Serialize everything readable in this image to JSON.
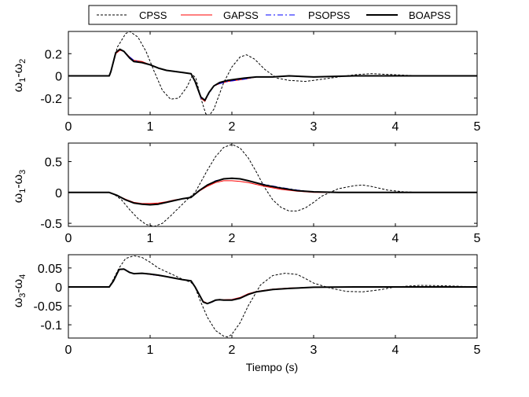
{
  "legend": {
    "entries": [
      {
        "label": "CPSS",
        "color": "#000000",
        "dash": "3,2",
        "width": 1
      },
      {
        "label": "GAPSS",
        "color": "#ff0000",
        "dash": "",
        "width": 1
      },
      {
        "label": "PSOPSS",
        "color": "#0000ff",
        "dash": "7,3,2,3",
        "width": 1
      },
      {
        "label": "BOAPSS",
        "color": "#000000",
        "dash": "",
        "width": 2
      }
    ]
  },
  "chart_data": [
    {
      "type": "line",
      "ylabel_base": "ω",
      "ylabel_sub1": "1",
      "ylabel_sep": "-ω",
      "ylabel_sub2": "2",
      "xlim": [
        0,
        5
      ],
      "ylim": [
        -0.35,
        0.4
      ],
      "xticks": [
        0,
        1,
        2,
        3,
        4,
        5
      ],
      "yticks": [
        -0.2,
        0,
        0.2
      ],
      "ytick_labels": [
        "-0.2",
        "0",
        "0.2"
      ],
      "series": [
        {
          "name": "CPSS",
          "x": [
            0,
            0.5,
            0.52,
            0.6,
            0.7,
            0.75,
            0.85,
            0.95,
            1.05,
            1.15,
            1.25,
            1.35,
            1.45,
            1.52,
            1.56,
            1.62,
            1.68,
            1.72,
            1.78,
            1.9,
            2.0,
            2.1,
            2.18,
            2.28,
            2.4,
            2.55,
            2.7,
            2.9,
            3.2,
            3.5,
            3.7,
            4.0,
            4.3,
            4.6,
            5.0
          ],
          "y": [
            0,
            0,
            0.04,
            0.26,
            0.38,
            0.4,
            0.35,
            0.22,
            0.04,
            -0.13,
            -0.21,
            -0.2,
            -0.1,
            0.01,
            -0.02,
            -0.2,
            -0.34,
            -0.36,
            -0.3,
            -0.06,
            0.08,
            0.17,
            0.19,
            0.15,
            0.06,
            -0.02,
            -0.04,
            -0.05,
            -0.02,
            0.01,
            0.02,
            0.01,
            0,
            0,
            0
          ]
        },
        {
          "name": "GAPSS",
          "x": [
            0,
            0.5,
            0.52,
            0.58,
            0.63,
            0.68,
            0.75,
            0.8,
            0.9,
            1.0,
            1.1,
            1.2,
            1.3,
            1.4,
            1.5,
            1.55,
            1.62,
            1.67,
            1.72,
            1.78,
            1.85,
            1.95,
            2.05,
            2.15,
            2.3,
            2.5,
            2.7,
            3.0,
            3.5,
            4.0,
            4.5,
            5.0
          ],
          "y": [
            0,
            0,
            0.04,
            0.2,
            0.23,
            0.22,
            0.17,
            0.14,
            0.13,
            0.1,
            0.07,
            0.05,
            0.04,
            0.03,
            0.02,
            -0.05,
            -0.2,
            -0.23,
            -0.15,
            -0.09,
            -0.07,
            -0.05,
            -0.04,
            -0.03,
            -0.01,
            -0.01,
            0,
            -0.01,
            0,
            0,
            0,
            0
          ]
        },
        {
          "name": "PSOPSS",
          "x": [
            0,
            0.5,
            0.52,
            0.58,
            0.63,
            0.68,
            0.75,
            0.8,
            0.9,
            1.0,
            1.1,
            1.2,
            1.3,
            1.4,
            1.5,
            1.55,
            1.62,
            1.67,
            1.72,
            1.78,
            1.85,
            1.95,
            2.05,
            2.15,
            2.3,
            2.5,
            2.7,
            3.0,
            3.5,
            4.0,
            4.5,
            5.0
          ],
          "y": [
            0,
            0,
            0.04,
            0.21,
            0.24,
            0.22,
            0.17,
            0.14,
            0.12,
            0.1,
            0.07,
            0.05,
            0.04,
            0.03,
            0.02,
            -0.05,
            -0.2,
            -0.22,
            -0.16,
            -0.09,
            -0.07,
            -0.05,
            -0.04,
            -0.03,
            -0.01,
            -0.01,
            0,
            -0.01,
            0,
            0,
            0,
            0
          ]
        },
        {
          "name": "BOAPSS",
          "x": [
            0,
            0.5,
            0.52,
            0.58,
            0.63,
            0.68,
            0.75,
            0.8,
            0.9,
            1.0,
            1.1,
            1.2,
            1.3,
            1.4,
            1.5,
            1.55,
            1.62,
            1.67,
            1.72,
            1.78,
            1.85,
            1.95,
            2.05,
            2.15,
            2.3,
            2.5,
            2.7,
            3.0,
            3.5,
            4.0,
            4.5,
            5.0
          ],
          "y": [
            0,
            0,
            0.04,
            0.21,
            0.24,
            0.22,
            0.16,
            0.13,
            0.12,
            0.1,
            0.07,
            0.05,
            0.04,
            0.03,
            0.02,
            -0.05,
            -0.19,
            -0.22,
            -0.15,
            -0.09,
            -0.06,
            -0.04,
            -0.03,
            -0.02,
            -0.01,
            -0.01,
            0,
            -0.01,
            0,
            0,
            0,
            0
          ]
        }
      ]
    },
    {
      "type": "line",
      "ylabel_base": "ω",
      "ylabel_sub1": "1",
      "ylabel_sep": "-ω",
      "ylabel_sub2": "3",
      "xlim": [
        0,
        5
      ],
      "ylim": [
        -0.55,
        0.8
      ],
      "xticks": [
        0,
        1,
        2,
        3,
        4,
        5
      ],
      "yticks": [
        -0.5,
        0,
        0.5
      ],
      "ytick_labels": [
        "-0.5",
        "0",
        "0.5"
      ],
      "series": [
        {
          "name": "CPSS",
          "x": [
            0,
            0.5,
            0.55,
            0.65,
            0.75,
            0.85,
            0.95,
            1.05,
            1.15,
            1.25,
            1.35,
            1.45,
            1.5,
            1.55,
            1.6,
            1.7,
            1.8,
            1.9,
            2.0,
            2.1,
            2.2,
            2.3,
            2.4,
            2.5,
            2.6,
            2.7,
            2.8,
            2.9,
            3.0,
            3.1,
            3.3,
            3.5,
            3.6,
            3.7,
            3.9,
            4.1,
            4.3,
            4.6,
            5.0
          ],
          "y": [
            0,
            0,
            -0.02,
            -0.12,
            -0.28,
            -0.42,
            -0.52,
            -0.55,
            -0.5,
            -0.38,
            -0.25,
            -0.12,
            -0.06,
            0.0,
            0.12,
            0.36,
            0.58,
            0.73,
            0.78,
            0.72,
            0.56,
            0.33,
            0.08,
            -0.12,
            -0.24,
            -0.3,
            -0.3,
            -0.25,
            -0.16,
            -0.06,
            0.06,
            0.11,
            0.12,
            0.1,
            0.04,
            0.01,
            0,
            0,
            0
          ]
        },
        {
          "name": "GAPSS",
          "x": [
            0,
            0.5,
            0.6,
            0.7,
            0.8,
            0.9,
            1.0,
            1.1,
            1.2,
            1.3,
            1.4,
            1.5,
            1.6,
            1.7,
            1.8,
            1.9,
            2.0,
            2.1,
            2.2,
            2.4,
            2.6,
            2.8,
            3.0,
            3.3,
            4.0,
            5.0
          ],
          "y": [
            0,
            0,
            -0.05,
            -0.11,
            -0.16,
            -0.18,
            -0.18,
            -0.17,
            -0.15,
            -0.12,
            -0.1,
            -0.08,
            0.02,
            0.1,
            0.16,
            0.19,
            0.19,
            0.18,
            0.16,
            0.1,
            0.05,
            0.02,
            0,
            0,
            0,
            0
          ]
        },
        {
          "name": "PSOPSS",
          "x": [
            0,
            0.5,
            0.6,
            0.7,
            0.8,
            0.9,
            1.0,
            1.1,
            1.2,
            1.3,
            1.4,
            1.5,
            1.6,
            1.7,
            1.8,
            1.9,
            2.0,
            2.1,
            2.2,
            2.4,
            2.6,
            2.8,
            3.0,
            3.3,
            4.0,
            5.0
          ],
          "y": [
            0,
            0,
            -0.05,
            -0.12,
            -0.17,
            -0.19,
            -0.2,
            -0.19,
            -0.16,
            -0.13,
            -0.1,
            -0.08,
            0.03,
            0.12,
            0.19,
            0.22,
            0.23,
            0.22,
            0.19,
            0.13,
            0.08,
            0.04,
            0.01,
            0,
            0,
            0
          ]
        },
        {
          "name": "BOAPSS",
          "x": [
            0,
            0.5,
            0.6,
            0.7,
            0.8,
            0.9,
            1.0,
            1.1,
            1.2,
            1.3,
            1.4,
            1.5,
            1.6,
            1.7,
            1.8,
            1.9,
            2.0,
            2.1,
            2.2,
            2.4,
            2.6,
            2.8,
            3.0,
            3.3,
            4.0,
            5.0
          ],
          "y": [
            0,
            0,
            -0.05,
            -0.12,
            -0.17,
            -0.19,
            -0.2,
            -0.19,
            -0.16,
            -0.13,
            -0.1,
            -0.08,
            0.03,
            0.12,
            0.18,
            0.22,
            0.23,
            0.22,
            0.19,
            0.12,
            0.07,
            0.03,
            0.01,
            0,
            0,
            0
          ]
        }
      ]
    },
    {
      "type": "line",
      "ylabel_base": "ω",
      "ylabel_sub1": "3",
      "ylabel_sep": "-ω",
      "ylabel_sub2": "4",
      "xlabel": "Tiempo (s)",
      "xlim": [
        0,
        5
      ],
      "ylim": [
        -0.135,
        0.085
      ],
      "xticks": [
        0,
        1,
        2,
        3,
        4,
        5
      ],
      "yticks": [
        -0.1,
        -0.05,
        0,
        0.05
      ],
      "ytick_labels": [
        "-0.1",
        "-0.05",
        "0",
        "0.05"
      ],
      "series": [
        {
          "name": "CPSS",
          "x": [
            0,
            0.5,
            0.55,
            0.62,
            0.7,
            0.8,
            0.9,
            1.0,
            1.1,
            1.2,
            1.3,
            1.4,
            1.5,
            1.55,
            1.6,
            1.7,
            1.8,
            1.9,
            1.95,
            2.0,
            2.1,
            2.2,
            2.35,
            2.5,
            2.65,
            2.8,
            2.9,
            3.0,
            3.2,
            3.4,
            3.6,
            3.8,
            4.0,
            4.3,
            4.6,
            5.0
          ],
          "y": [
            0,
            0,
            0.02,
            0.05,
            0.075,
            0.082,
            0.078,
            0.065,
            0.05,
            0.04,
            0.03,
            0.02,
            0.012,
            0.0,
            -0.03,
            -0.08,
            -0.115,
            -0.13,
            -0.132,
            -0.125,
            -0.095,
            -0.05,
            0.005,
            0.03,
            0.036,
            0.033,
            0.022,
            0.01,
            -0.003,
            -0.012,
            -0.013,
            -0.008,
            0.0,
            0.004,
            0.003,
            0
          ]
        },
        {
          "name": "GAPSS",
          "x": [
            0,
            0.5,
            0.55,
            0.62,
            0.68,
            0.75,
            0.8,
            0.9,
            1.0,
            1.1,
            1.2,
            1.3,
            1.4,
            1.5,
            1.55,
            1.6,
            1.65,
            1.7,
            1.75,
            1.8,
            1.85,
            1.9,
            2.0,
            2.1,
            2.2,
            2.3,
            2.5,
            2.7,
            3.0,
            3.5,
            4.0,
            5.0
          ],
          "y": [
            0,
            0,
            0.015,
            0.045,
            0.047,
            0.038,
            0.035,
            0.036,
            0.033,
            0.03,
            0.027,
            0.023,
            0.019,
            0.016,
            0.0,
            -0.02,
            -0.038,
            -0.043,
            -0.04,
            -0.035,
            -0.033,
            -0.034,
            -0.033,
            -0.028,
            -0.018,
            -0.012,
            -0.006,
            -0.003,
            -0.001,
            0,
            0,
            0
          ]
        },
        {
          "name": "PSOPSS",
          "x": [
            0,
            0.5,
            0.55,
            0.62,
            0.68,
            0.75,
            0.8,
            0.9,
            1.0,
            1.1,
            1.2,
            1.3,
            1.4,
            1.5,
            1.55,
            1.6,
            1.65,
            1.7,
            1.75,
            1.8,
            1.85,
            1.9,
            2.0,
            2.1,
            2.2,
            2.3,
            2.5,
            2.7,
            3.0,
            3.5,
            4.0,
            5.0
          ],
          "y": [
            0,
            0,
            0.015,
            0.046,
            0.048,
            0.039,
            0.035,
            0.036,
            0.033,
            0.03,
            0.027,
            0.023,
            0.019,
            0.016,
            0.0,
            -0.02,
            -0.04,
            -0.045,
            -0.041,
            -0.036,
            -0.034,
            -0.035,
            -0.034,
            -0.029,
            -0.019,
            -0.013,
            -0.007,
            -0.004,
            -0.001,
            0,
            0,
            0
          ]
        },
        {
          "name": "BOAPSS",
          "x": [
            0,
            0.5,
            0.55,
            0.62,
            0.68,
            0.75,
            0.8,
            0.9,
            1.0,
            1.1,
            1.2,
            1.3,
            1.4,
            1.5,
            1.55,
            1.6,
            1.65,
            1.7,
            1.75,
            1.8,
            1.85,
            1.9,
            2.0,
            2.1,
            2.2,
            2.3,
            2.5,
            2.7,
            3.0,
            3.5,
            4.0,
            5.0
          ],
          "y": [
            0,
            0,
            0.015,
            0.046,
            0.047,
            0.038,
            0.035,
            0.036,
            0.034,
            0.031,
            0.027,
            0.023,
            0.019,
            0.016,
            0.0,
            -0.02,
            -0.04,
            -0.044,
            -0.04,
            -0.035,
            -0.034,
            -0.035,
            -0.035,
            -0.03,
            -0.02,
            -0.013,
            -0.007,
            -0.004,
            -0.001,
            0,
            0,
            0
          ]
        }
      ]
    }
  ]
}
